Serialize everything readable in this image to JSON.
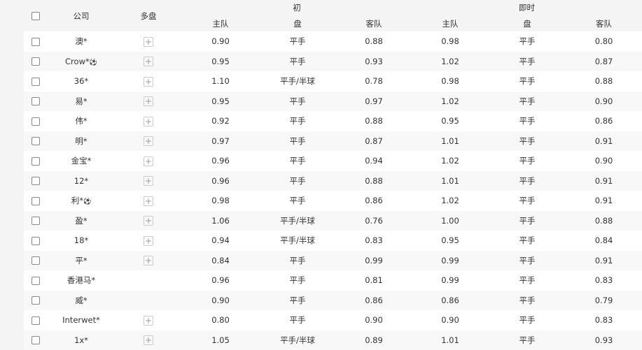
{
  "header": {
    "company": "公司",
    "multi": "多盘",
    "initial": "初",
    "live": "即时",
    "home": "主队",
    "line": "盘",
    "away": "客队"
  },
  "rows": [
    {
      "company": "澳*",
      "plus": true,
      "i_home": "0.90",
      "i_line": "平手",
      "i_away": "0.88",
      "l_home": "0.98",
      "l_line": "平手",
      "l_away": "0.80"
    },
    {
      "company": "Crow*",
      "ball": true,
      "plus": true,
      "i_home": "0.95",
      "i_line": "平手",
      "i_away": "0.93",
      "l_home": "1.02",
      "l_line": "平手",
      "l_away": "0.87"
    },
    {
      "company": "36*",
      "plus": true,
      "i_home": "1.10",
      "i_line": "平手/半球",
      "i_away": "0.78",
      "l_home": "0.98",
      "l_line": "平手",
      "l_away": "0.88"
    },
    {
      "company": "易*",
      "plus": true,
      "i_home": "0.95",
      "i_line": "平手",
      "i_away": "0.97",
      "l_home": "1.02",
      "l_line": "平手",
      "l_away": "0.90"
    },
    {
      "company": "伟*",
      "plus": true,
      "i_home": "0.92",
      "i_line": "平手",
      "i_away": "0.88",
      "l_home": "0.95",
      "l_line": "平手",
      "l_away": "0.86"
    },
    {
      "company": "明*",
      "plus": true,
      "i_home": "0.97",
      "i_line": "平手",
      "i_away": "0.87",
      "l_home": "1.01",
      "l_line": "平手",
      "l_away": "0.91"
    },
    {
      "company": "金宝*",
      "plus": true,
      "i_home": "0.96",
      "i_line": "平手",
      "i_away": "0.94",
      "l_home": "1.02",
      "l_line": "平手",
      "l_away": "0.90"
    },
    {
      "company": "12*",
      "plus": true,
      "i_home": "0.96",
      "i_line": "平手",
      "i_away": "0.88",
      "l_home": "1.01",
      "l_line": "平手",
      "l_away": "0.91"
    },
    {
      "company": "利*",
      "ball": true,
      "plus": true,
      "i_home": "0.98",
      "i_line": "平手",
      "i_away": "0.86",
      "l_home": "1.02",
      "l_line": "平手",
      "l_away": "0.91"
    },
    {
      "company": "盈*",
      "plus": true,
      "i_home": "1.06",
      "i_line": "平手/半球",
      "i_away": "0.76",
      "l_home": "1.00",
      "l_line": "平手",
      "l_away": "0.88"
    },
    {
      "company": "18*",
      "plus": true,
      "i_home": "0.94",
      "i_line": "平手/半球",
      "i_away": "0.83",
      "l_home": "0.95",
      "l_line": "平手",
      "l_away": "0.84"
    },
    {
      "company": "平*",
      "plus": true,
      "i_home": "0.84",
      "i_line": "平手",
      "i_away": "0.99",
      "l_home": "0.99",
      "l_line": "平手",
      "l_away": "0.91"
    },
    {
      "company": "香港马*",
      "plus": false,
      "i_home": "0.96",
      "i_line": "平手",
      "i_away": "0.81",
      "l_home": "0.99",
      "l_line": "平手",
      "l_away": "0.83"
    },
    {
      "company": "威*",
      "plus": false,
      "i_home": "0.90",
      "i_line": "平手",
      "i_away": "0.86",
      "l_home": "0.86",
      "l_line": "平手",
      "l_away": "0.79"
    },
    {
      "company": "Interwet*",
      "plus": true,
      "i_home": "0.80",
      "i_line": "平手",
      "i_away": "0.90",
      "l_home": "0.90",
      "l_line": "平手",
      "l_away": "0.83"
    },
    {
      "company": "1x*",
      "plus": true,
      "i_home": "1.05",
      "i_line": "平手/半球",
      "i_away": "0.89",
      "l_home": "1.01",
      "l_line": "平手",
      "l_away": "0.93"
    }
  ]
}
